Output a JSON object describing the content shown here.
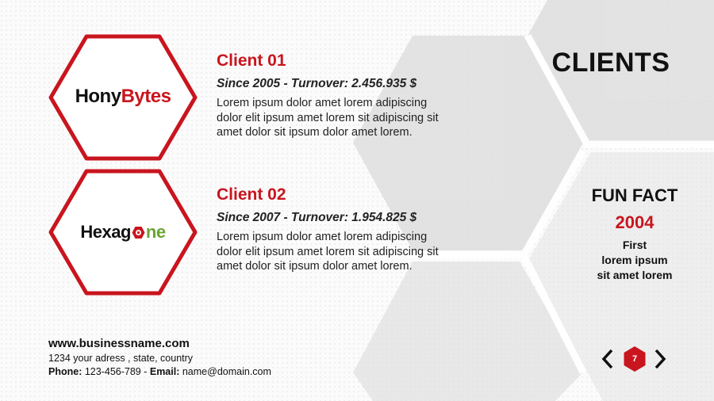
{
  "slide": {
    "heading": "CLIENTS",
    "page_number": "7",
    "accent_color": "#c9151e"
  },
  "clients": [
    {
      "logo": {
        "part1": "Hony",
        "part2": "Bytes"
      },
      "title": "Client 01",
      "subtitle": "Since 2005 - Turnover: 2.456.935 $",
      "description": "Lorem ipsum dolor amet lorem adipiscing dolor elit ipsum amet lorem sit adipiscing sit amet dolor sit ipsum dolor amet lorem."
    },
    {
      "logo": {
        "part1": "Hexag",
        "part2": "ne"
      },
      "title": "Client 02",
      "subtitle": "Since 2007 - Turnover: 1.954.825 $",
      "description": "Lorem ipsum dolor amet lorem adipiscing dolor elit ipsum amet lorem sit adipiscing sit amet dolor sit ipsum dolor amet lorem."
    }
  ],
  "fun_fact": {
    "title": "FUN FACT",
    "year": "2004",
    "lines": [
      "First",
      "lorem ipsum",
      "sit amet lorem"
    ]
  },
  "footer": {
    "website": "www.businessname.com",
    "address": "1234 your adress , state, country",
    "phone_label": "Phone:",
    "phone": "123-456-789",
    "separator": " - ",
    "email_label": "Email:",
    "email": "name@domain.com"
  },
  "icons": {
    "prev": "chevron-left-icon",
    "next": "chevron-right-icon"
  }
}
